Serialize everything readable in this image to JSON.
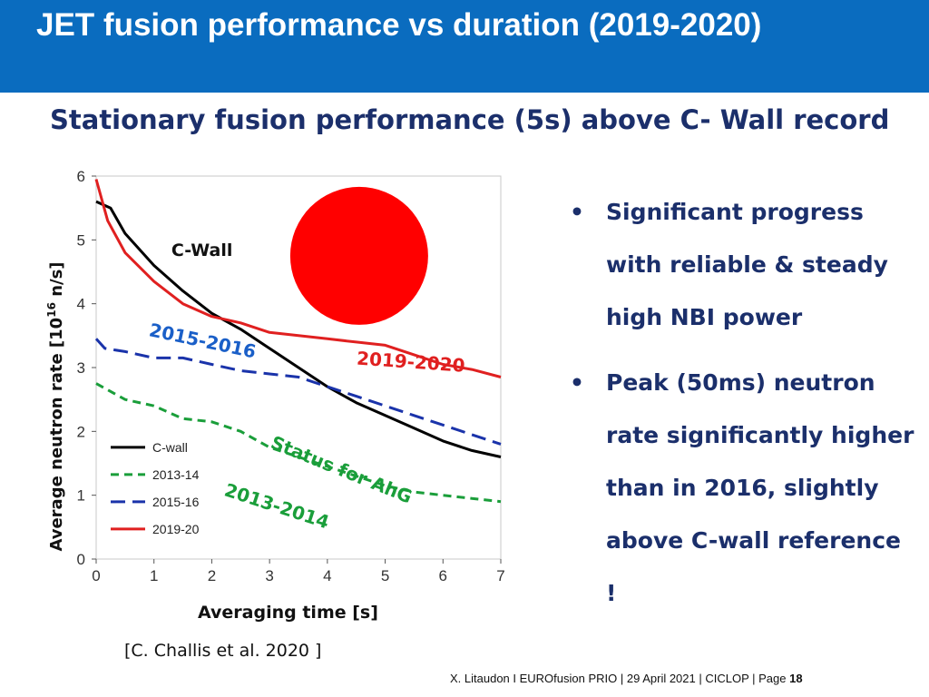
{
  "slide": {
    "title": "JET fusion performance vs duration (2019-2020)",
    "subtitle": "Stationary fusion performance (5s) above C- Wall record",
    "citation": "[C. Challis et al. 2020 ]",
    "footer_text": "X. Litaudon I EUROfusion PRIO | 29 April  2021 | CICLOP | Page",
    "page_number": "18",
    "bullet_glyph": "•",
    "bullets": [
      "Significant progress with reliable & steady high NBI power",
      "Peak (50ms) neutron rate significantly higher than in 2016, slightly above  C-wall reference !"
    ]
  },
  "chart_data": {
    "type": "line",
    "xlabel": "Averaging time [s]",
    "ylabel_prefix": "Average neutron rate [10",
    "ylabel_exponent": "16",
    "ylabel_suffix": " n/s]",
    "xlim": [
      0,
      7
    ],
    "ylim": [
      0,
      6
    ],
    "xticks": [
      "0",
      "1",
      "2",
      "3",
      "4",
      "5",
      "6",
      "7"
    ],
    "yticks": [
      "0",
      "1",
      "2",
      "3",
      "4",
      "5",
      "6"
    ],
    "grid": false,
    "legend_position": "bottom-left",
    "series": [
      {
        "name": "C-wall",
        "color": "#000000",
        "dash": "solid",
        "x": [
          0,
          0.25,
          0.5,
          1,
          1.5,
          2,
          2.5,
          3,
          3.5,
          4,
          4.5,
          5,
          5.5,
          6,
          6.5,
          7
        ],
        "y": [
          5.6,
          5.5,
          5.1,
          4.6,
          4.2,
          3.85,
          3.6,
          3.3,
          3.0,
          2.7,
          2.45,
          2.25,
          2.05,
          1.85,
          1.7,
          1.6
        ]
      },
      {
        "name": "2013-14",
        "color": "#1a9e3a",
        "dash": "dash",
        "x": [
          0,
          0.5,
          1,
          1.5,
          2,
          2.5,
          3,
          3.5,
          4,
          4.5,
          5,
          5.5,
          6,
          6.5,
          7
        ],
        "y": [
          2.75,
          2.5,
          2.4,
          2.2,
          2.15,
          2.0,
          1.75,
          1.6,
          1.45,
          1.3,
          1.15,
          1.05,
          1.0,
          0.95,
          0.9
        ]
      },
      {
        "name": "2015-16",
        "color": "#1a33aa",
        "dash": "longdash",
        "x": [
          0,
          0.15,
          0.5,
          1,
          1.5,
          2,
          2.5,
          3,
          3.5,
          4,
          4.5,
          5,
          5.5,
          6,
          6.5,
          7
        ],
        "y": [
          3.45,
          3.3,
          3.25,
          3.15,
          3.15,
          3.05,
          2.95,
          2.9,
          2.85,
          2.7,
          2.55,
          2.4,
          2.25,
          2.1,
          1.95,
          1.8
        ]
      },
      {
        "name": "2019-20",
        "color": "#e02020",
        "dash": "solid",
        "x": [
          0,
          0.2,
          0.5,
          1,
          1.5,
          2,
          2.5,
          3,
          3.5,
          4,
          4.5,
          5,
          5.5,
          6,
          6.5,
          7
        ],
        "y": [
          5.95,
          5.3,
          4.8,
          4.35,
          4.0,
          3.8,
          3.7,
          3.55,
          3.5,
          3.45,
          3.4,
          3.35,
          3.2,
          3.05,
          2.97,
          2.85
        ]
      }
    ],
    "annotations": {
      "cwall": {
        "text": "C-Wall",
        "x": 1.3,
        "y": 4.75,
        "color": "#111111",
        "angle": 0
      },
      "y2015": {
        "text": "2015-2016",
        "x": 0.9,
        "y": 3.5,
        "color": "#1a5fc8",
        "angle": 12
      },
      "y2019": {
        "text": "2019-2020",
        "x": 4.5,
        "y": 3.05,
        "color": "#e02020",
        "angle": 4
      },
      "status1": {
        "text": "Status  for AhG",
        "x": 3.0,
        "y": 1.75,
        "color": "#1a9e3a",
        "angle": 22
      },
      "status2": {
        "text": "2013-2014",
        "x": 2.2,
        "y": 1.0,
        "color": "#1a9e3a",
        "angle": 18
      }
    },
    "marker": {
      "shape": "circle",
      "color": "#ff0000",
      "x": 4.55,
      "y": 4.75
    }
  }
}
